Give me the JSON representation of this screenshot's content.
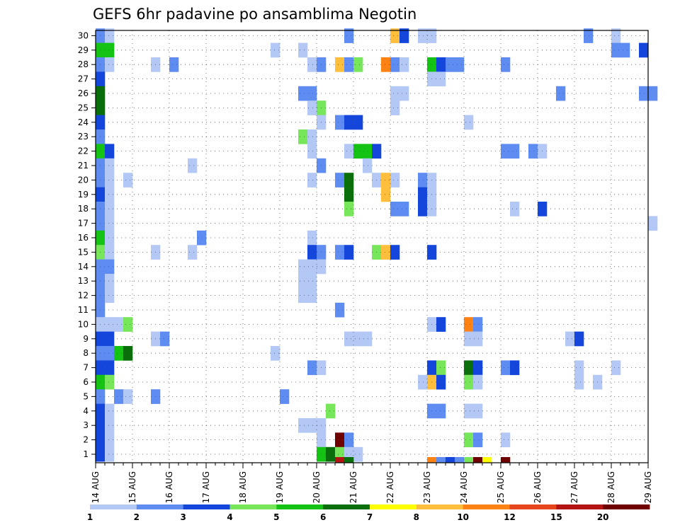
{
  "chart_data": {
    "type": "heatmap",
    "title": "GEFS 6hr padavine po ansamblima Negotin",
    "xlabel": "",
    "ylabel": "",
    "x_tick_labels": [
      "14 AUG",
      "15 AUG",
      "16 AUG",
      "17 AUG",
      "18 AUG",
      "19 AUG",
      "20 AUG",
      "21 AUG",
      "22 AUG",
      "23 AUG",
      "24 AUG",
      "25 AUG",
      "26 AUG",
      "27 AUG",
      "28 AUG",
      "29 AUG"
    ],
    "y_tick_labels": [
      "1",
      "2",
      "3",
      "4",
      "5",
      "6",
      "7",
      "8",
      "9",
      "10",
      "11",
      "12",
      "13",
      "14",
      "15",
      "16",
      "17",
      "18",
      "19",
      "20",
      "21",
      "22",
      "23",
      "24",
      "25",
      "26",
      "27",
      "28",
      "29",
      "30"
    ],
    "time_steps": 61,
    "members": 30,
    "grid": true,
    "colorbar": {
      "labels": [
        "1",
        "2",
        "3",
        "4",
        "5",
        "6",
        "7",
        "8",
        "10",
        "12",
        "15",
        "20"
      ],
      "colors": [
        "#b4c8f5",
        "#5f8cf0",
        "#1446dc",
        "#78e65a",
        "#14c314",
        "#0a6e0a",
        "#ffff00",
        "#ffbe3c",
        "#ff8214",
        "#e6461e",
        "#b41414",
        "#6e0000"
      ]
    },
    "cells": [
      [
        0,
        30,
        2
      ],
      [
        1,
        30,
        1
      ],
      [
        27,
        30,
        2
      ],
      [
        32,
        30,
        8
      ],
      [
        33,
        30,
        3
      ],
      [
        35,
        30,
        1
      ],
      [
        36,
        30,
        1
      ],
      [
        53,
        30,
        2
      ],
      [
        56,
        30,
        1
      ],
      [
        0,
        29,
        5
      ],
      [
        1,
        29,
        5
      ],
      [
        19,
        29,
        1
      ],
      [
        22,
        29,
        1
      ],
      [
        56,
        29,
        2
      ],
      [
        57,
        29,
        2
      ],
      [
        59,
        29,
        3
      ],
      [
        0,
        28,
        2
      ],
      [
        1,
        28,
        1
      ],
      [
        6,
        28,
        1
      ],
      [
        8,
        28,
        2
      ],
      [
        23,
        28,
        1
      ],
      [
        24,
        28,
        2
      ],
      [
        26,
        28,
        8
      ],
      [
        27,
        28,
        2
      ],
      [
        28,
        28,
        4
      ],
      [
        31,
        28,
        10
      ],
      [
        32,
        28,
        2
      ],
      [
        33,
        28,
        1
      ],
      [
        36,
        28,
        5
      ],
      [
        37,
        28,
        3
      ],
      [
        38,
        28,
        2
      ],
      [
        39,
        28,
        2
      ],
      [
        44,
        28,
        2
      ],
      [
        0,
        27,
        3
      ],
      [
        36,
        27,
        1
      ],
      [
        37,
        27,
        1
      ],
      [
        0,
        26,
        6
      ],
      [
        22,
        26,
        2
      ],
      [
        23,
        26,
        2
      ],
      [
        32,
        26,
        1
      ],
      [
        33,
        26,
        1
      ],
      [
        50,
        26,
        2
      ],
      [
        59,
        26,
        2
      ],
      [
        60,
        26,
        2
      ],
      [
        0,
        25,
        6
      ],
      [
        23,
        25,
        1
      ],
      [
        24,
        25,
        4
      ],
      [
        32,
        25,
        1
      ],
      [
        0,
        24,
        3
      ],
      [
        24,
        24,
        1
      ],
      [
        26,
        24,
        2
      ],
      [
        27,
        24,
        3
      ],
      [
        28,
        24,
        3
      ],
      [
        40,
        24,
        1
      ],
      [
        0,
        23,
        2
      ],
      [
        22,
        23,
        4
      ],
      [
        23,
        23,
        1
      ],
      [
        0,
        22,
        5
      ],
      [
        1,
        22,
        3
      ],
      [
        23,
        22,
        1
      ],
      [
        27,
        22,
        1
      ],
      [
        28,
        22,
        5
      ],
      [
        29,
        22,
        5
      ],
      [
        30,
        22,
        3
      ],
      [
        44,
        22,
        2
      ],
      [
        45,
        22,
        2
      ],
      [
        47,
        22,
        2
      ],
      [
        48,
        22,
        1
      ],
      [
        0,
        21,
        2
      ],
      [
        1,
        21,
        1
      ],
      [
        10,
        21,
        1
      ],
      [
        24,
        21,
        2
      ],
      [
        29,
        21,
        1
      ],
      [
        0,
        20,
        2
      ],
      [
        1,
        20,
        1
      ],
      [
        3,
        20,
        1
      ],
      [
        23,
        20,
        1
      ],
      [
        26,
        20,
        2
      ],
      [
        27,
        20,
        6
      ],
      [
        30,
        20,
        1
      ],
      [
        31,
        20,
        8
      ],
      [
        32,
        20,
        1
      ],
      [
        35,
        20,
        2
      ],
      [
        36,
        20,
        1
      ],
      [
        0,
        19,
        3
      ],
      [
        1,
        19,
        1
      ],
      [
        27,
        19,
        6
      ],
      [
        31,
        19,
        8
      ],
      [
        35,
        19,
        3
      ],
      [
        36,
        19,
        1
      ],
      [
        0,
        18,
        2
      ],
      [
        1,
        18,
        1
      ],
      [
        27,
        18,
        4
      ],
      [
        32,
        18,
        2
      ],
      [
        33,
        18,
        2
      ],
      [
        35,
        18,
        3
      ],
      [
        36,
        18,
        1
      ],
      [
        45,
        18,
        1
      ],
      [
        48,
        18,
        3
      ],
      [
        0,
        17,
        2
      ],
      [
        1,
        17,
        1
      ],
      [
        60,
        17,
        1
      ],
      [
        0,
        16,
        5
      ],
      [
        1,
        16,
        1
      ],
      [
        11,
        16,
        2
      ],
      [
        23,
        16,
        1
      ],
      [
        0,
        15,
        4
      ],
      [
        1,
        15,
        1
      ],
      [
        6,
        15,
        1
      ],
      [
        10,
        15,
        1
      ],
      [
        23,
        15,
        3
      ],
      [
        24,
        15,
        2
      ],
      [
        26,
        15,
        2
      ],
      [
        27,
        15,
        3
      ],
      [
        30,
        15,
        4
      ],
      [
        31,
        15,
        8
      ],
      [
        32,
        15,
        3
      ],
      [
        36,
        15,
        3
      ],
      [
        0,
        14,
        2
      ],
      [
        1,
        14,
        2
      ],
      [
        22,
        14,
        1
      ],
      [
        23,
        14,
        1
      ],
      [
        24,
        14,
        1
      ],
      [
        0,
        13,
        2
      ],
      [
        1,
        13,
        1
      ],
      [
        22,
        13,
        1
      ],
      [
        23,
        13,
        1
      ],
      [
        0,
        12,
        2
      ],
      [
        1,
        12,
        1
      ],
      [
        22,
        12,
        1
      ],
      [
        23,
        12,
        1
      ],
      [
        0,
        11,
        2
      ],
      [
        26,
        11,
        2
      ],
      [
        0,
        10,
        1
      ],
      [
        1,
        10,
        1
      ],
      [
        2,
        10,
        1
      ],
      [
        3,
        10,
        4
      ],
      [
        36,
        10,
        1
      ],
      [
        37,
        10,
        3
      ],
      [
        40,
        10,
        10
      ],
      [
        41,
        10,
        2
      ],
      [
        0,
        9,
        3
      ],
      [
        1,
        9,
        3
      ],
      [
        6,
        9,
        1
      ],
      [
        7,
        9,
        2
      ],
      [
        27,
        9,
        1
      ],
      [
        28,
        9,
        1
      ],
      [
        29,
        9,
        1
      ],
      [
        40,
        9,
        1
      ],
      [
        41,
        9,
        1
      ],
      [
        51,
        9,
        1
      ],
      [
        52,
        9,
        3
      ],
      [
        0,
        8,
        2
      ],
      [
        1,
        8,
        2
      ],
      [
        2,
        8,
        5
      ],
      [
        3,
        8,
        6
      ],
      [
        19,
        8,
        1
      ],
      [
        0,
        7,
        3
      ],
      [
        1,
        7,
        3
      ],
      [
        23,
        7,
        2
      ],
      [
        24,
        7,
        1
      ],
      [
        36,
        7,
        3
      ],
      [
        37,
        7,
        4
      ],
      [
        40,
        7,
        6
      ],
      [
        41,
        7,
        3
      ],
      [
        44,
        7,
        2
      ],
      [
        45,
        7,
        3
      ],
      [
        52,
        7,
        1
      ],
      [
        56,
        7,
        1
      ],
      [
        0,
        6,
        5
      ],
      [
        1,
        6,
        4
      ],
      [
        35,
        6,
        1
      ],
      [
        36,
        6,
        8
      ],
      [
        37,
        6,
        3
      ],
      [
        40,
        6,
        4
      ],
      [
        41,
        6,
        1
      ],
      [
        52,
        6,
        1
      ],
      [
        54,
        6,
        1
      ],
      [
        0,
        5,
        2
      ],
      [
        2,
        5,
        2
      ],
      [
        3,
        5,
        1
      ],
      [
        6,
        5,
        2
      ],
      [
        20,
        5,
        2
      ],
      [
        0,
        4,
        3
      ],
      [
        1,
        4,
        1
      ],
      [
        25,
        4,
        4
      ],
      [
        36,
        4,
        2
      ],
      [
        37,
        4,
        2
      ],
      [
        40,
        4,
        1
      ],
      [
        41,
        4,
        1
      ],
      [
        0,
        3,
        3
      ],
      [
        1,
        3,
        1
      ],
      [
        22,
        3,
        1
      ],
      [
        23,
        3,
        1
      ],
      [
        24,
        3,
        1
      ],
      [
        0,
        2,
        3
      ],
      [
        1,
        2,
        1
      ],
      [
        24,
        2,
        1
      ],
      [
        26,
        2,
        20
      ],
      [
        27,
        2,
        2
      ],
      [
        40,
        2,
        4
      ],
      [
        41,
        2,
        2
      ],
      [
        44,
        2,
        1
      ],
      [
        0,
        1,
        3
      ],
      [
        1,
        1,
        1
      ],
      [
        24,
        1,
        5
      ],
      [
        25,
        1,
        6
      ],
      [
        26,
        1,
        4
      ],
      [
        27,
        1,
        1
      ],
      [
        28,
        1,
        1
      ],
      [
        0,
        0,
        2
      ],
      [
        22,
        0,
        1
      ],
      [
        24,
        0,
        1
      ],
      [
        25,
        0,
        3
      ],
      [
        26,
        0,
        3
      ],
      [
        27,
        0,
        8
      ],
      [
        28,
        0,
        2
      ],
      [
        26,
        -1,
        15
      ],
      [
        27,
        -1,
        6
      ],
      [
        36,
        -1,
        10
      ],
      [
        37,
        -1,
        2
      ],
      [
        38,
        -1,
        3
      ],
      [
        39,
        -1,
        2
      ],
      [
        40,
        -1,
        4
      ],
      [
        41,
        -1,
        20
      ],
      [
        42,
        -1,
        7
      ],
      [
        44,
        -1,
        20
      ]
    ]
  }
}
